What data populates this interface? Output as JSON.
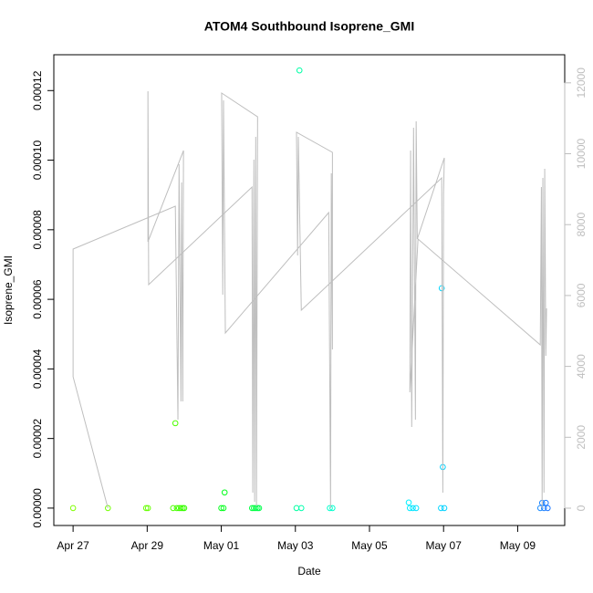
{
  "chart_data": {
    "type": "scatter",
    "title": "ATOM4 Southbound Isoprene_GMI",
    "xlabel": "Date",
    "ylabel": "Isoprene_GMI",
    "xlim": [
      -0.52,
      13.27
    ],
    "xticks": [
      {
        "value": 0,
        "label": "Apr 27"
      },
      {
        "value": 2,
        "label": "Apr 29"
      },
      {
        "value": 4,
        "label": "May 01"
      },
      {
        "value": 6,
        "label": "May 03"
      },
      {
        "value": 8,
        "label": "May 05"
      },
      {
        "value": 10,
        "label": "May 07"
      },
      {
        "value": 12,
        "label": "May 09"
      }
    ],
    "ylim": [
      -5e-06,
      0.0001303
    ],
    "yticks": [
      {
        "value": 0,
        "label": "0.00000"
      },
      {
        "value": 2e-05,
        "label": "0.00002"
      },
      {
        "value": 4e-05,
        "label": "0.00004"
      },
      {
        "value": 6e-05,
        "label": "0.00006"
      },
      {
        "value": 8e-05,
        "label": "0.00008"
      },
      {
        "value": 0.0001,
        "label": "0.00010"
      },
      {
        "value": 0.00012,
        "label": "0.00012"
      }
    ],
    "y2lim": [
      -489,
      12793
    ],
    "y2ticks": [
      0,
      2000,
      4000,
      6000,
      8000,
      10000,
      12000
    ],
    "y2color": "#bebebe",
    "series": [
      {
        "type": "scatter",
        "x": [
          0,
          0.94,
          1.97,
          2.02,
          2.7,
          2.76,
          2.8,
          2.86,
          2.91,
          2.96,
          3.0,
          4.0,
          4.09,
          4.06,
          4.83,
          4.88,
          4.93,
          4.98,
          5.02,
          6.03,
          6.11,
          6.16,
          6.93,
          7.0,
          9.06,
          9.09,
          9.17,
          9.26,
          9.95,
          9.98,
          9.93,
          10.02,
          12.61,
          12.66,
          12.71,
          12.76,
          12.81
        ],
        "values": [
          0,
          0,
          0,
          0,
          0,
          2.44e-05,
          0,
          0,
          0,
          0,
          0,
          0,
          4.5e-06,
          0,
          0,
          0,
          0,
          0,
          0,
          0,
          0.0001258,
          0,
          0,
          0,
          1.6e-06,
          0,
          0,
          0,
          6.32e-05,
          1.18e-05,
          0,
          0,
          0,
          1.5e-06,
          0,
          1.5e-06,
          0
        ],
        "colors": [
          "#7fff00",
          "#73ff00",
          "#66ff00",
          "#66ff00",
          "#4dff00",
          "#4dff00",
          "#47ff00",
          "#40ff00",
          "#40ff00",
          "#3aff00",
          "#33ff00",
          "#00ff1a",
          "#00ff1a",
          "#00ff1a",
          "#00ff40",
          "#00ff40",
          "#00ff40",
          "#00ff4d",
          "#00ff4d",
          "#00ffa0",
          "#00ffa6",
          "#00ffad",
          "#00ffcc",
          "#00ffcc",
          "#00f0ff",
          "#00eaff",
          "#00e5ff",
          "#00e0ff",
          "#00d5ff",
          "#00d0ff",
          "#00d5ff",
          "#00d0ff",
          "#1a8cff",
          "#1a85ff",
          "#1a80ff",
          "#1a7aff",
          "#1a75ff"
        ]
      },
      {
        "type": "line",
        "axis": "y2",
        "color": "#bebebe",
        "x": [
          0.94,
          0,
          0,
          2.76,
          2.83,
          2.86,
          2.91,
          2.93,
          2.96,
          2.98,
          2.02,
          2.02,
          2.04,
          4.83,
          4.85,
          4.88,
          4.9,
          4.93,
          4.95,
          4.98,
          4.01,
          4.04,
          4.06,
          4.11,
          6.9,
          6.95,
          6.97,
          7.0,
          7.0,
          6.03,
          6.06,
          6.08,
          6.16,
          9.95,
          9.98,
          10.0,
          10.02,
          9.29,
          9.26,
          9.24,
          9.19,
          9.14,
          9.11,
          9.09,
          9.31,
          12.61,
          12.64,
          12.66,
          12.68,
          12.71,
          12.73,
          12.76,
          12.78
        ],
        "values": [
          0,
          3707,
          7310,
          8520,
          2497,
          9704,
          3012,
          9189,
          3012,
          10090,
          7516,
          11763,
          6306,
          9060,
          438,
          9833,
          180,
          10476,
          51,
          11042,
          11712,
          6023,
          11506,
          4942,
          8340,
          0,
          9447,
          4479,
          10039,
          10605,
          7130,
          10476,
          5586,
          9318,
          438,
          8880,
          9884,
          7593,
          10914,
          2497,
          10734,
          2291,
          10090,
          3269,
          7593,
          4607,
          9060,
          0,
          9318,
          438,
          9575,
          4298,
          5637
        ]
      }
    ]
  }
}
